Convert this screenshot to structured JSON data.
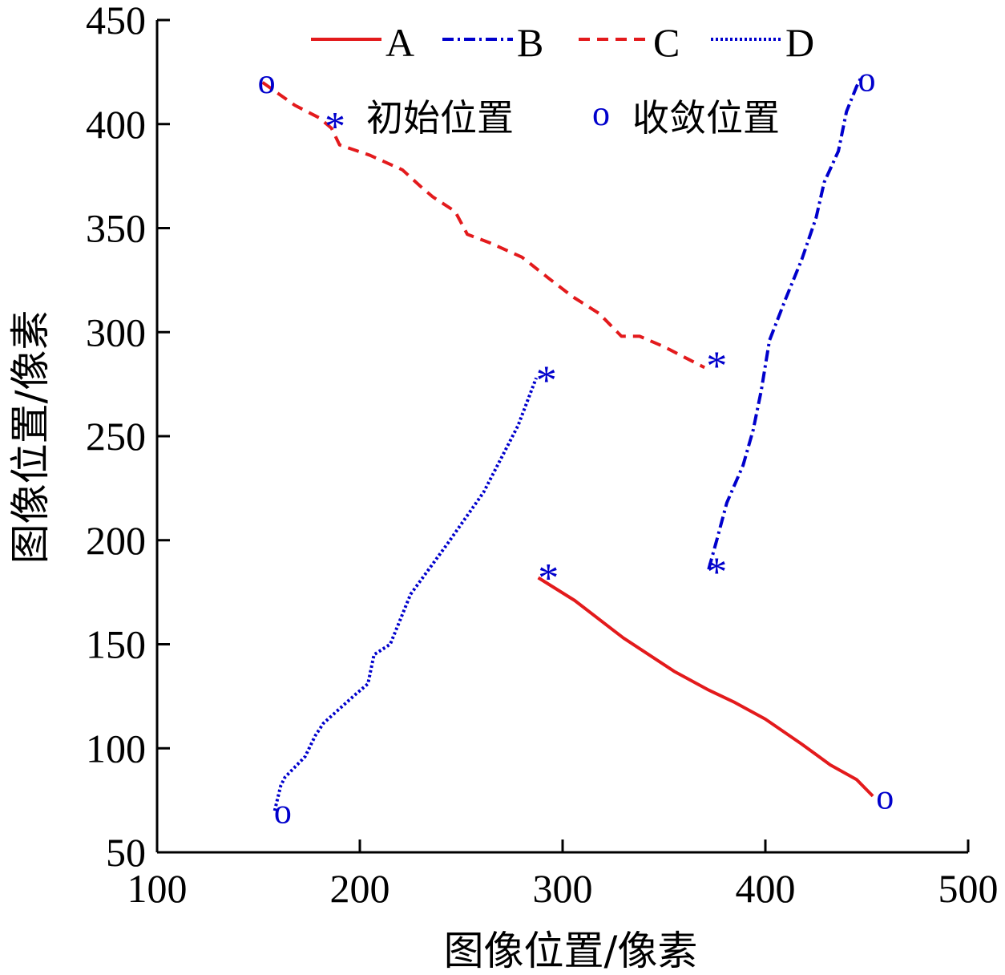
{
  "chart_data": {
    "type": "line",
    "xlabel": "图像位置/像素",
    "ylabel": "图像位置/像素",
    "xlim": [
      100,
      500
    ],
    "ylim": [
      50,
      450
    ],
    "xticks": [
      "100",
      "200",
      "300",
      "400",
      "500"
    ],
    "yticks": [
      "50",
      "100",
      "150",
      "200",
      "250",
      "300",
      "350",
      "400",
      "450"
    ],
    "grid": false,
    "legend_position": "top",
    "marker_legend": {
      "initial_symbol": "*",
      "initial_label": "初始位置",
      "converged_symbol": "o",
      "converged_label": "收敛位置"
    },
    "series": [
      {
        "name": "A",
        "color": "#e31a1c",
        "dash": "solid",
        "points": [
          [
            288,
            182
          ],
          [
            306,
            171
          ],
          [
            330,
            153
          ],
          [
            355,
            137
          ],
          [
            372,
            128
          ],
          [
            385,
            122
          ],
          [
            400,
            114
          ],
          [
            418,
            102
          ],
          [
            432,
            92
          ],
          [
            445,
            85
          ],
          [
            453,
            77
          ]
        ],
        "initial": [
          293,
          186
        ],
        "converged": [
          459,
          76
        ]
      },
      {
        "name": "B",
        "color": "#0000cc",
        "dash": "dashdot",
        "points": [
          [
            372,
            186
          ],
          [
            376,
            200
          ],
          [
            381,
            218
          ],
          [
            389,
            236
          ],
          [
            394,
            253
          ],
          [
            398,
            272
          ],
          [
            402,
            296
          ],
          [
            410,
            316
          ],
          [
            418,
            335
          ],
          [
            425,
            355
          ],
          [
            429,
            372
          ],
          [
            436,
            387
          ],
          [
            440,
            406
          ],
          [
            445,
            418
          ],
          [
            447,
            422
          ]
        ],
        "initial": [
          376,
          189
        ],
        "converged": [
          450,
          421
        ]
      },
      {
        "name": "C",
        "color": "#e31a1c",
        "dash": "dashed",
        "points": [
          [
            152,
            420
          ],
          [
            168,
            409
          ],
          [
            180,
            403
          ],
          [
            186,
            398
          ],
          [
            190,
            390
          ],
          [
            205,
            385
          ],
          [
            221,
            378
          ],
          [
            230,
            370
          ],
          [
            236,
            365
          ],
          [
            247,
            358
          ],
          [
            253,
            347
          ],
          [
            264,
            343
          ],
          [
            280,
            336
          ],
          [
            293,
            326
          ],
          [
            305,
            317
          ],
          [
            318,
            309
          ],
          [
            329,
            298
          ],
          [
            338,
            298
          ],
          [
            350,
            293
          ],
          [
            370,
            283
          ]
        ],
        "initial": [
          376,
          288
        ],
        "converged": [
          154,
          420
        ]
      },
      {
        "name": "D",
        "color": "#0000cc",
        "dash": "dotted",
        "points": [
          [
            158,
            70
          ],
          [
            161,
            82
          ],
          [
            163,
            86
          ],
          [
            173,
            96
          ],
          [
            178,
            106
          ],
          [
            182,
            112
          ],
          [
            190,
            119
          ],
          [
            198,
            126
          ],
          [
            204,
            131
          ],
          [
            207,
            145
          ],
          [
            215,
            150
          ],
          [
            225,
            174
          ],
          [
            243,
            198
          ],
          [
            261,
            223
          ],
          [
            278,
            255
          ],
          [
            287,
            278
          ]
        ],
        "initial": [
          292,
          281
        ],
        "converged": [
          162,
          69
        ]
      }
    ]
  }
}
